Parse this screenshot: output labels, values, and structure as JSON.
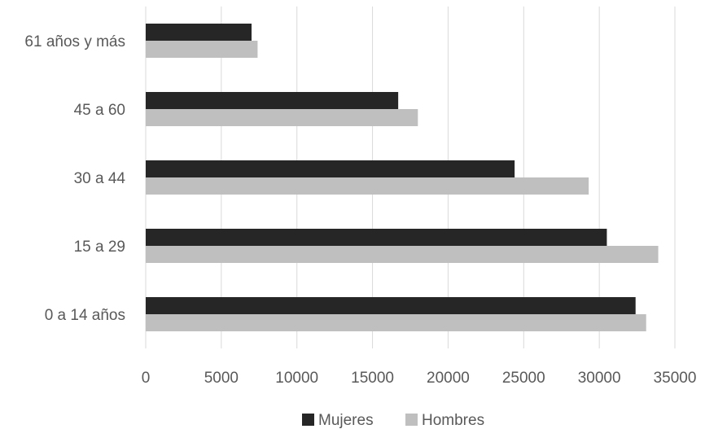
{
  "chart_data": {
    "type": "bar",
    "orientation": "horizontal",
    "categories": [
      "61 años y más",
      "45 a 60",
      "30 a 44",
      "15 a 29",
      "0 a 14 años"
    ],
    "series": [
      {
        "name": "Mujeres",
        "color": "#262626",
        "values": [
          7000,
          16700,
          24400,
          30500,
          32400
        ]
      },
      {
        "name": "Hombres",
        "color": "#bfbfbf",
        "values": [
          7400,
          18000,
          29300,
          33900,
          33100
        ]
      }
    ],
    "xlim": [
      0,
      35000
    ],
    "xticks": [
      "0",
      "5000",
      "10000",
      "15000",
      "20000",
      "25000",
      "30000",
      "35000"
    ],
    "grid": true,
    "legend_position": "bottom"
  }
}
